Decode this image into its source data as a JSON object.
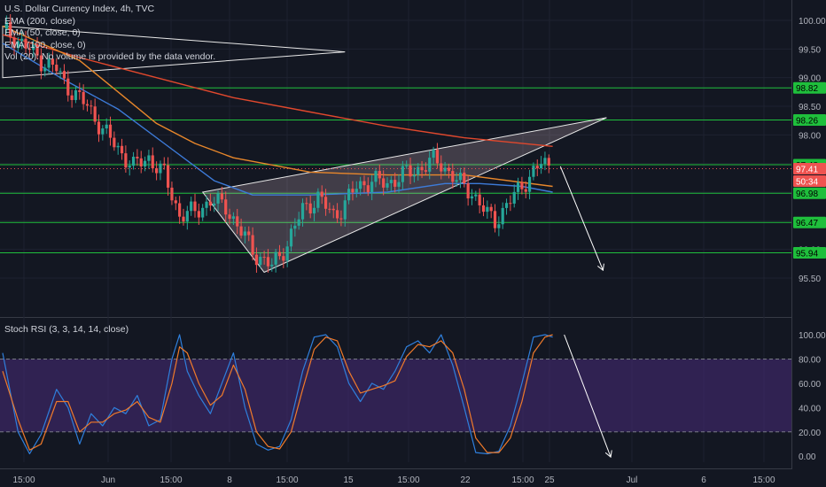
{
  "legend": {
    "title": "U.S. Dollar Currency Index, 4h, TVC",
    "ema200": "EMA (200, close)",
    "ema50": "EMA (50, close, 0)",
    "ema100": "EMA (100, close, 0)",
    "vol": "Vol (20): No volume is provided by the data vendor."
  },
  "rsi_panel": {
    "title": "Stoch RSI (3, 3, 14, 14, close)"
  },
  "colors": {
    "background": "#131722",
    "up_candle": "#26a69a",
    "down_candle": "#ef5350",
    "ema200": "#e0482d",
    "ema100": "#e8872b",
    "ema50": "#3d7bd9",
    "level_line": "#1fbf3c",
    "level_badge": "#1fbf3c",
    "price_badge": "#ef5350",
    "rsi_k": "#2f7fdc",
    "rsi_d": "#f07a2a",
    "rsi_band": "#482b7a"
  },
  "price_badges": [
    {
      "label": "98.82",
      "kind": "level"
    },
    {
      "label": "98.26",
      "kind": "level"
    },
    {
      "label": "97.48",
      "kind": "level"
    },
    {
      "label": "97.41",
      "kind": "price"
    },
    {
      "label": "50:34",
      "kind": "timer"
    },
    {
      "label": "96.98",
      "kind": "level"
    },
    {
      "label": "96.47",
      "kind": "level"
    },
    {
      "label": "95.94",
      "kind": "level"
    }
  ],
  "chart_data": [
    {
      "type": "candlestick",
      "title": "U.S. Dollar Currency Index, 4h, TVC",
      "y_axis_ticks": [
        "100.00",
        "99.50",
        "99.00",
        "98.50",
        "98.00",
        "97.50",
        "97.00",
        "96.50",
        "96.00",
        "95.50"
      ],
      "ylim": [
        95.3,
        100.3
      ],
      "x_axis_ticks": [
        "15:00",
        "Jun",
        "15:00",
        "8",
        "15:00",
        "15",
        "15:00",
        "22",
        "15:00",
        "25",
        "Jul",
        "6",
        "15:00"
      ],
      "horizontal_levels": [
        98.82,
        98.26,
        97.48,
        96.98,
        96.47,
        95.94
      ],
      "last_price": 97.41,
      "countdown": "50:34",
      "close_path": [
        [
          0,
          99.85
        ],
        [
          5,
          99.6
        ],
        [
          10,
          99.3
        ],
        [
          14,
          99.15
        ],
        [
          16,
          98.9
        ],
        [
          22,
          98.5
        ],
        [
          26,
          98.1
        ],
        [
          30,
          97.75
        ],
        [
          34,
          97.45
        ],
        [
          38,
          97.6
        ],
        [
          42,
          97.3
        ],
        [
          46,
          96.6
        ],
        [
          50,
          96.65
        ],
        [
          54,
          96.85
        ],
        [
          58,
          96.75
        ],
        [
          62,
          96.3
        ],
        [
          66,
          95.9
        ],
        [
          70,
          95.7
        ],
        [
          74,
          96.1
        ],
        [
          78,
          96.7
        ],
        [
          82,
          96.9
        ],
        [
          86,
          96.6
        ],
        [
          88,
          96.7
        ],
        [
          92,
          97.1
        ],
        [
          96,
          97.2
        ],
        [
          100,
          97.15
        ],
        [
          104,
          97.3
        ],
        [
          108,
          97.4
        ],
        [
          112,
          97.55
        ],
        [
          114,
          97.5
        ],
        [
          118,
          97.2
        ],
        [
          122,
          97.0
        ],
        [
          126,
          96.6
        ],
        [
          128,
          96.5
        ],
        [
          132,
          96.85
        ],
        [
          136,
          97.2
        ],
        [
          140,
          97.5
        ],
        [
          142,
          97.45
        ]
      ],
      "series": [
        {
          "name": "EMA (200, close)",
          "values": [
            [
              0,
              99.75
            ],
            [
              20,
              99.35
            ],
            [
              40,
              99.0
            ],
            [
              60,
              98.65
            ],
            [
              80,
              98.4
            ],
            [
              100,
              98.15
            ],
            [
              120,
              97.95
            ],
            [
              143,
              97.8
            ]
          ]
        },
        {
          "name": "EMA (100, close, 0)",
          "values": [
            [
              0,
              99.9
            ],
            [
              20,
              99.3
            ],
            [
              30,
              98.75
            ],
            [
              40,
              98.2
            ],
            [
              50,
              97.85
            ],
            [
              60,
              97.6
            ],
            [
              80,
              97.35
            ],
            [
              100,
              97.3
            ],
            [
              120,
              97.3
            ],
            [
              143,
              97.1
            ]
          ]
        },
        {
          "name": "EMA (50, close, 0)",
          "values": [
            [
              0,
              99.6
            ],
            [
              15,
              99.0
            ],
            [
              30,
              98.45
            ],
            [
              42,
              97.85
            ],
            [
              55,
              97.2
            ],
            [
              65,
              96.95
            ],
            [
              80,
              96.95
            ],
            [
              100,
              97.0
            ],
            [
              115,
              97.15
            ],
            [
              124,
              97.15
            ],
            [
              135,
              97.1
            ],
            [
              143,
              97.0
            ]
          ]
        }
      ],
      "drawings": [
        {
          "type": "triangle",
          "points": [
            [
              0,
              99.9
            ],
            [
              89,
              99.45
            ],
            [
              0,
              99.0
            ]
          ]
        },
        {
          "type": "rising-wedge",
          "points": [
            [
              52,
              97.0
            ],
            [
              157,
              98.3
            ],
            [
              68,
              95.6
            ]
          ]
        },
        {
          "type": "arrow",
          "points": [
            [
              145,
              97.45
            ],
            [
              156,
              95.65
            ]
          ]
        }
      ]
    },
    {
      "type": "line",
      "title": "Stoch RSI (3, 3, 14, 14, close)",
      "y_axis_ticks": [
        "100.00",
        "80.00",
        "60.00",
        "40.00",
        "20.00",
        "0.00"
      ],
      "ylim": [
        -5,
        103
      ],
      "band": [
        20,
        80
      ],
      "series": [
        {
          "name": "K",
          "values": [
            [
              0,
              85
            ],
            [
              4,
              20
            ],
            [
              7,
              2
            ],
            [
              10,
              18
            ],
            [
              14,
              55
            ],
            [
              17,
              40
            ],
            [
              20,
              10
            ],
            [
              23,
              35
            ],
            [
              26,
              25
            ],
            [
              29,
              40
            ],
            [
              32,
              35
            ],
            [
              35,
              50
            ],
            [
              38,
              25
            ],
            [
              41,
              30
            ],
            [
              44,
              80
            ],
            [
              46,
              100
            ],
            [
              48,
              70
            ],
            [
              51,
              50
            ],
            [
              54,
              35
            ],
            [
              57,
              60
            ],
            [
              60,
              85
            ],
            [
              63,
              40
            ],
            [
              66,
              10
            ],
            [
              69,
              5
            ],
            [
              72,
              8
            ],
            [
              75,
              30
            ],
            [
              78,
              70
            ],
            [
              81,
              98
            ],
            [
              84,
              100
            ],
            [
              87,
              90
            ],
            [
              90,
              60
            ],
            [
              93,
              45
            ],
            [
              96,
              60
            ],
            [
              99,
              55
            ],
            [
              102,
              70
            ],
            [
              105,
              90
            ],
            [
              108,
              95
            ],
            [
              111,
              85
            ],
            [
              114,
              100
            ],
            [
              117,
              75
            ],
            [
              120,
              40
            ],
            [
              123,
              3
            ],
            [
              126,
              2
            ],
            [
              129,
              4
            ],
            [
              132,
              25
            ],
            [
              135,
              60
            ],
            [
              138,
              98
            ],
            [
              141,
              100
            ],
            [
              143,
              98
            ]
          ]
        },
        {
          "name": "D",
          "values": [
            [
              0,
              70
            ],
            [
              4,
              30
            ],
            [
              7,
              5
            ],
            [
              10,
              10
            ],
            [
              14,
              45
            ],
            [
              17,
              45
            ],
            [
              20,
              20
            ],
            [
              23,
              28
            ],
            [
              26,
              28
            ],
            [
              29,
              35
            ],
            [
              32,
              38
            ],
            [
              35,
              45
            ],
            [
              38,
              32
            ],
            [
              41,
              28
            ],
            [
              44,
              60
            ],
            [
              46,
              90
            ],
            [
              48,
              85
            ],
            [
              51,
              60
            ],
            [
              54,
              42
            ],
            [
              57,
              50
            ],
            [
              60,
              75
            ],
            [
              63,
              55
            ],
            [
              66,
              20
            ],
            [
              69,
              8
            ],
            [
              72,
              6
            ],
            [
              75,
              20
            ],
            [
              78,
              55
            ],
            [
              81,
              88
            ],
            [
              84,
              98
            ],
            [
              87,
              95
            ],
            [
              90,
              70
            ],
            [
              93,
              52
            ],
            [
              96,
              55
            ],
            [
              99,
              58
            ],
            [
              102,
              62
            ],
            [
              105,
              82
            ],
            [
              108,
              92
            ],
            [
              111,
              90
            ],
            [
              114,
              95
            ],
            [
              117,
              85
            ],
            [
              120,
              55
            ],
            [
              123,
              15
            ],
            [
              126,
              3
            ],
            [
              129,
              3
            ],
            [
              132,
              15
            ],
            [
              135,
              45
            ],
            [
              138,
              85
            ],
            [
              141,
              98
            ],
            [
              143,
              100
            ]
          ]
        }
      ],
      "drawings": [
        {
          "type": "arrow",
          "points": [
            [
              146,
              100
            ],
            [
              158,
              0
            ]
          ]
        }
      ]
    }
  ]
}
